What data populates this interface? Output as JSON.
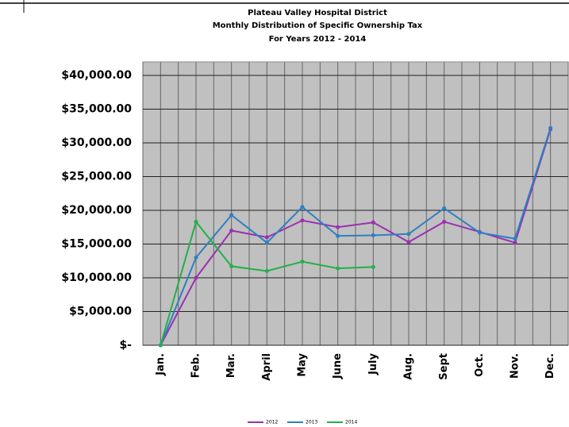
{
  "chart_data": {
    "type": "line",
    "title": "Plateau Valley Hospital District",
    "subtitle": "Monthly Distribution of Specific Ownership Tax",
    "subtitle2": "For Years 2012 - 2014",
    "categories": [
      "Jan.",
      "Feb.",
      "Mar.",
      "April",
      "May",
      "June",
      "July",
      "Aug.",
      "Sept",
      "Oct.",
      "Nov.",
      "Dec."
    ],
    "series": [
      {
        "name": "2012",
        "color": "#9b30b0",
        "values": [
          0,
          10000,
          17000,
          16000,
          18500,
          17500,
          18200,
          15300,
          18300,
          16800,
          15200,
          32000
        ]
      },
      {
        "name": "2013",
        "color": "#2e7fc2",
        "values": [
          0,
          13000,
          19300,
          15200,
          20500,
          16200,
          16300,
          16500,
          20300,
          16700,
          15800,
          32200
        ]
      },
      {
        "name": "2014",
        "color": "#22b04a",
        "values": [
          0,
          18300,
          11700,
          11000,
          12400,
          11400,
          11600,
          null,
          null,
          null,
          null,
          null
        ]
      }
    ],
    "ylim": [
      0,
      42000
    ],
    "yticks": [
      {
        "value": 0,
        "label": "$-"
      },
      {
        "value": 5000,
        "label": "$5,000.00"
      },
      {
        "value": 10000,
        "label": "$10,000.00"
      },
      {
        "value": 15000,
        "label": "$15,000.00"
      },
      {
        "value": 20000,
        "label": "$20,000.00"
      },
      {
        "value": 25000,
        "label": "$25,000.00"
      },
      {
        "value": 30000,
        "label": "$30,000.00"
      },
      {
        "value": 35000,
        "label": "$35,000.00"
      },
      {
        "value": 40000,
        "label": "$40,000.00"
      }
    ],
    "grid": true,
    "legend": "bottom"
  }
}
